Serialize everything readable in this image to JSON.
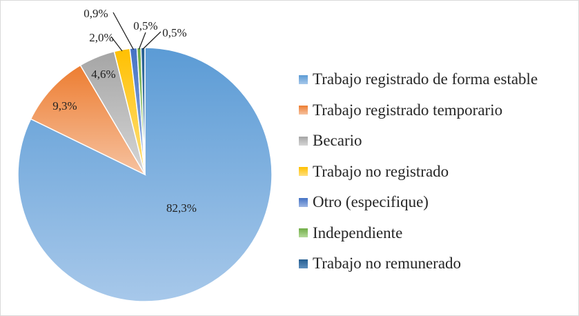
{
  "chart_data": {
    "type": "pie",
    "title": "",
    "start_angle_deg": 0,
    "direction": "clockwise",
    "legend_position": "right",
    "slices": [
      {
        "name": "Trabajo registrado de forma estable",
        "value": 82.3,
        "label": "82,3%",
        "color": "#5B9BD5",
        "color_light": "#A7C8EA"
      },
      {
        "name": "Trabajo registrado temporario",
        "value": 9.3,
        "label": "9,3%",
        "color": "#ED7D31",
        "color_light": "#F6C2A0"
      },
      {
        "name": "Becario",
        "value": 4.6,
        "label": "4,6%",
        "color": "#A5A5A5",
        "color_light": "#D6D6D6"
      },
      {
        "name": "Trabajo no registrado",
        "value": 2.0,
        "label": "2,0%",
        "color": "#FFC000",
        "color_light": "#FFE07F"
      },
      {
        "name": "Otro (especifique)",
        "value": 0.9,
        "label": "0,9%",
        "color": "#4472C4",
        "color_light": "#9DB5E3"
      },
      {
        "name": "Independiente",
        "value": 0.5,
        "label": "0,5%",
        "color": "#70AD47",
        "color_light": "#B5DA9A"
      },
      {
        "name": "Trabajo no remunerado",
        "value": 0.5,
        "label": "0,5%",
        "color": "#255E91",
        "color_light": "#5E8FBD"
      }
    ]
  }
}
